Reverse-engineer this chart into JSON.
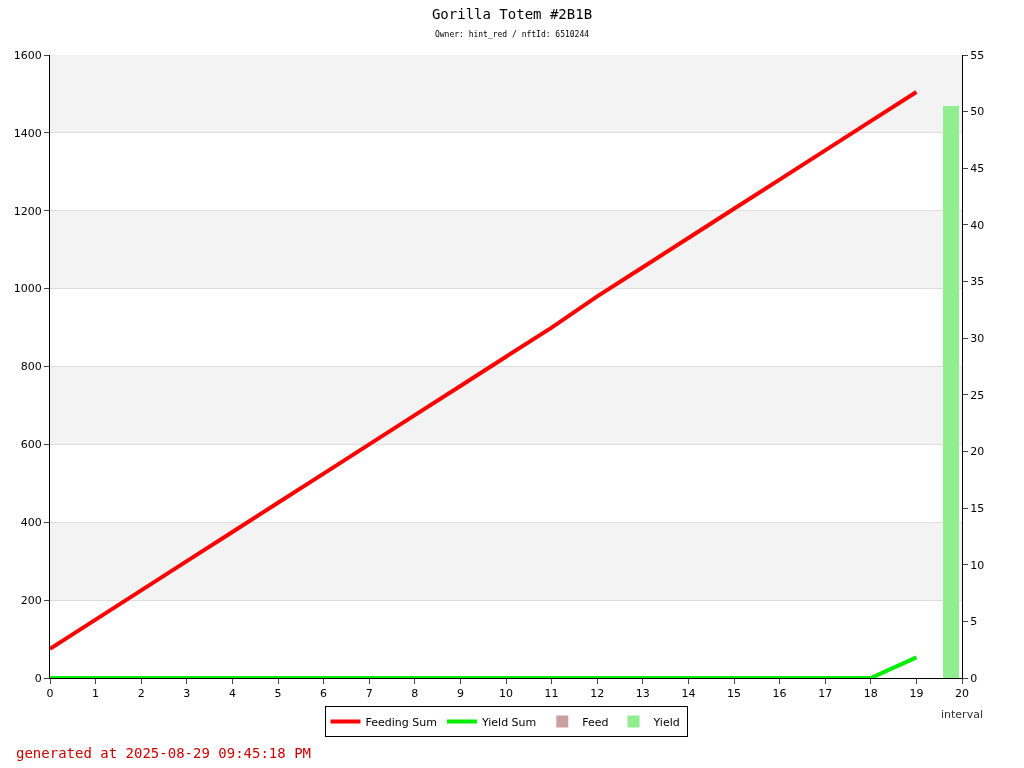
{
  "chart_data": {
    "type": "line",
    "title": "Gorilla Totem #2B1B",
    "subtitle": "Owner: hint_red / nftId: 6510244",
    "xlabel": "interval",
    "annotations": [
      "generated at 2025-08-29 09:45:18 PM"
    ],
    "x": [
      0,
      1,
      2,
      3,
      4,
      5,
      6,
      7,
      8,
      9,
      10,
      11,
      12,
      13,
      14,
      15,
      16,
      17,
      18,
      19
    ],
    "series": [
      {
        "name": "Feeding Sum",
        "color": "#ff0000",
        "values": [
          75,
          150,
          225,
          300,
          375,
          450,
          525,
          600,
          675,
          750,
          825,
          900,
          980,
          1055,
          1130,
          1205,
          1280,
          1355,
          1430,
          1505
        ]
      },
      {
        "name": "Yield Sum",
        "color": "#00ee00",
        "values": [
          0,
          0,
          0,
          0,
          0,
          0,
          0,
          0,
          0,
          0,
          0,
          0,
          0,
          0,
          0,
          0,
          0,
          0,
          0,
          53
        ]
      },
      {
        "name": "Feed",
        "type": "bar",
        "axis": "y2",
        "color": "#c8a0a0",
        "x": [
          19.5
        ],
        "values": [
          0
        ]
      },
      {
        "name": "Yield",
        "type": "bar",
        "axis": "y2",
        "color": "#90ee90",
        "x": [
          19.5
        ],
        "values": [
          50.5
        ]
      }
    ],
    "xlim": [
      0,
      20
    ],
    "xticks": [
      0,
      1,
      2,
      3,
      4,
      5,
      6,
      7,
      8,
      9,
      10,
      11,
      12,
      13,
      14,
      15,
      16,
      17,
      18,
      19,
      20
    ],
    "ylim": [
      0,
      1600
    ],
    "yticks": [
      0,
      200,
      400,
      600,
      800,
      1000,
      1200,
      1400,
      1600
    ],
    "y2lim": [
      0,
      55
    ],
    "y2ticks": [
      0,
      5,
      10,
      15,
      20,
      25,
      30,
      35,
      40,
      45,
      50,
      55
    ],
    "grid": "y",
    "legend": "bottom"
  }
}
